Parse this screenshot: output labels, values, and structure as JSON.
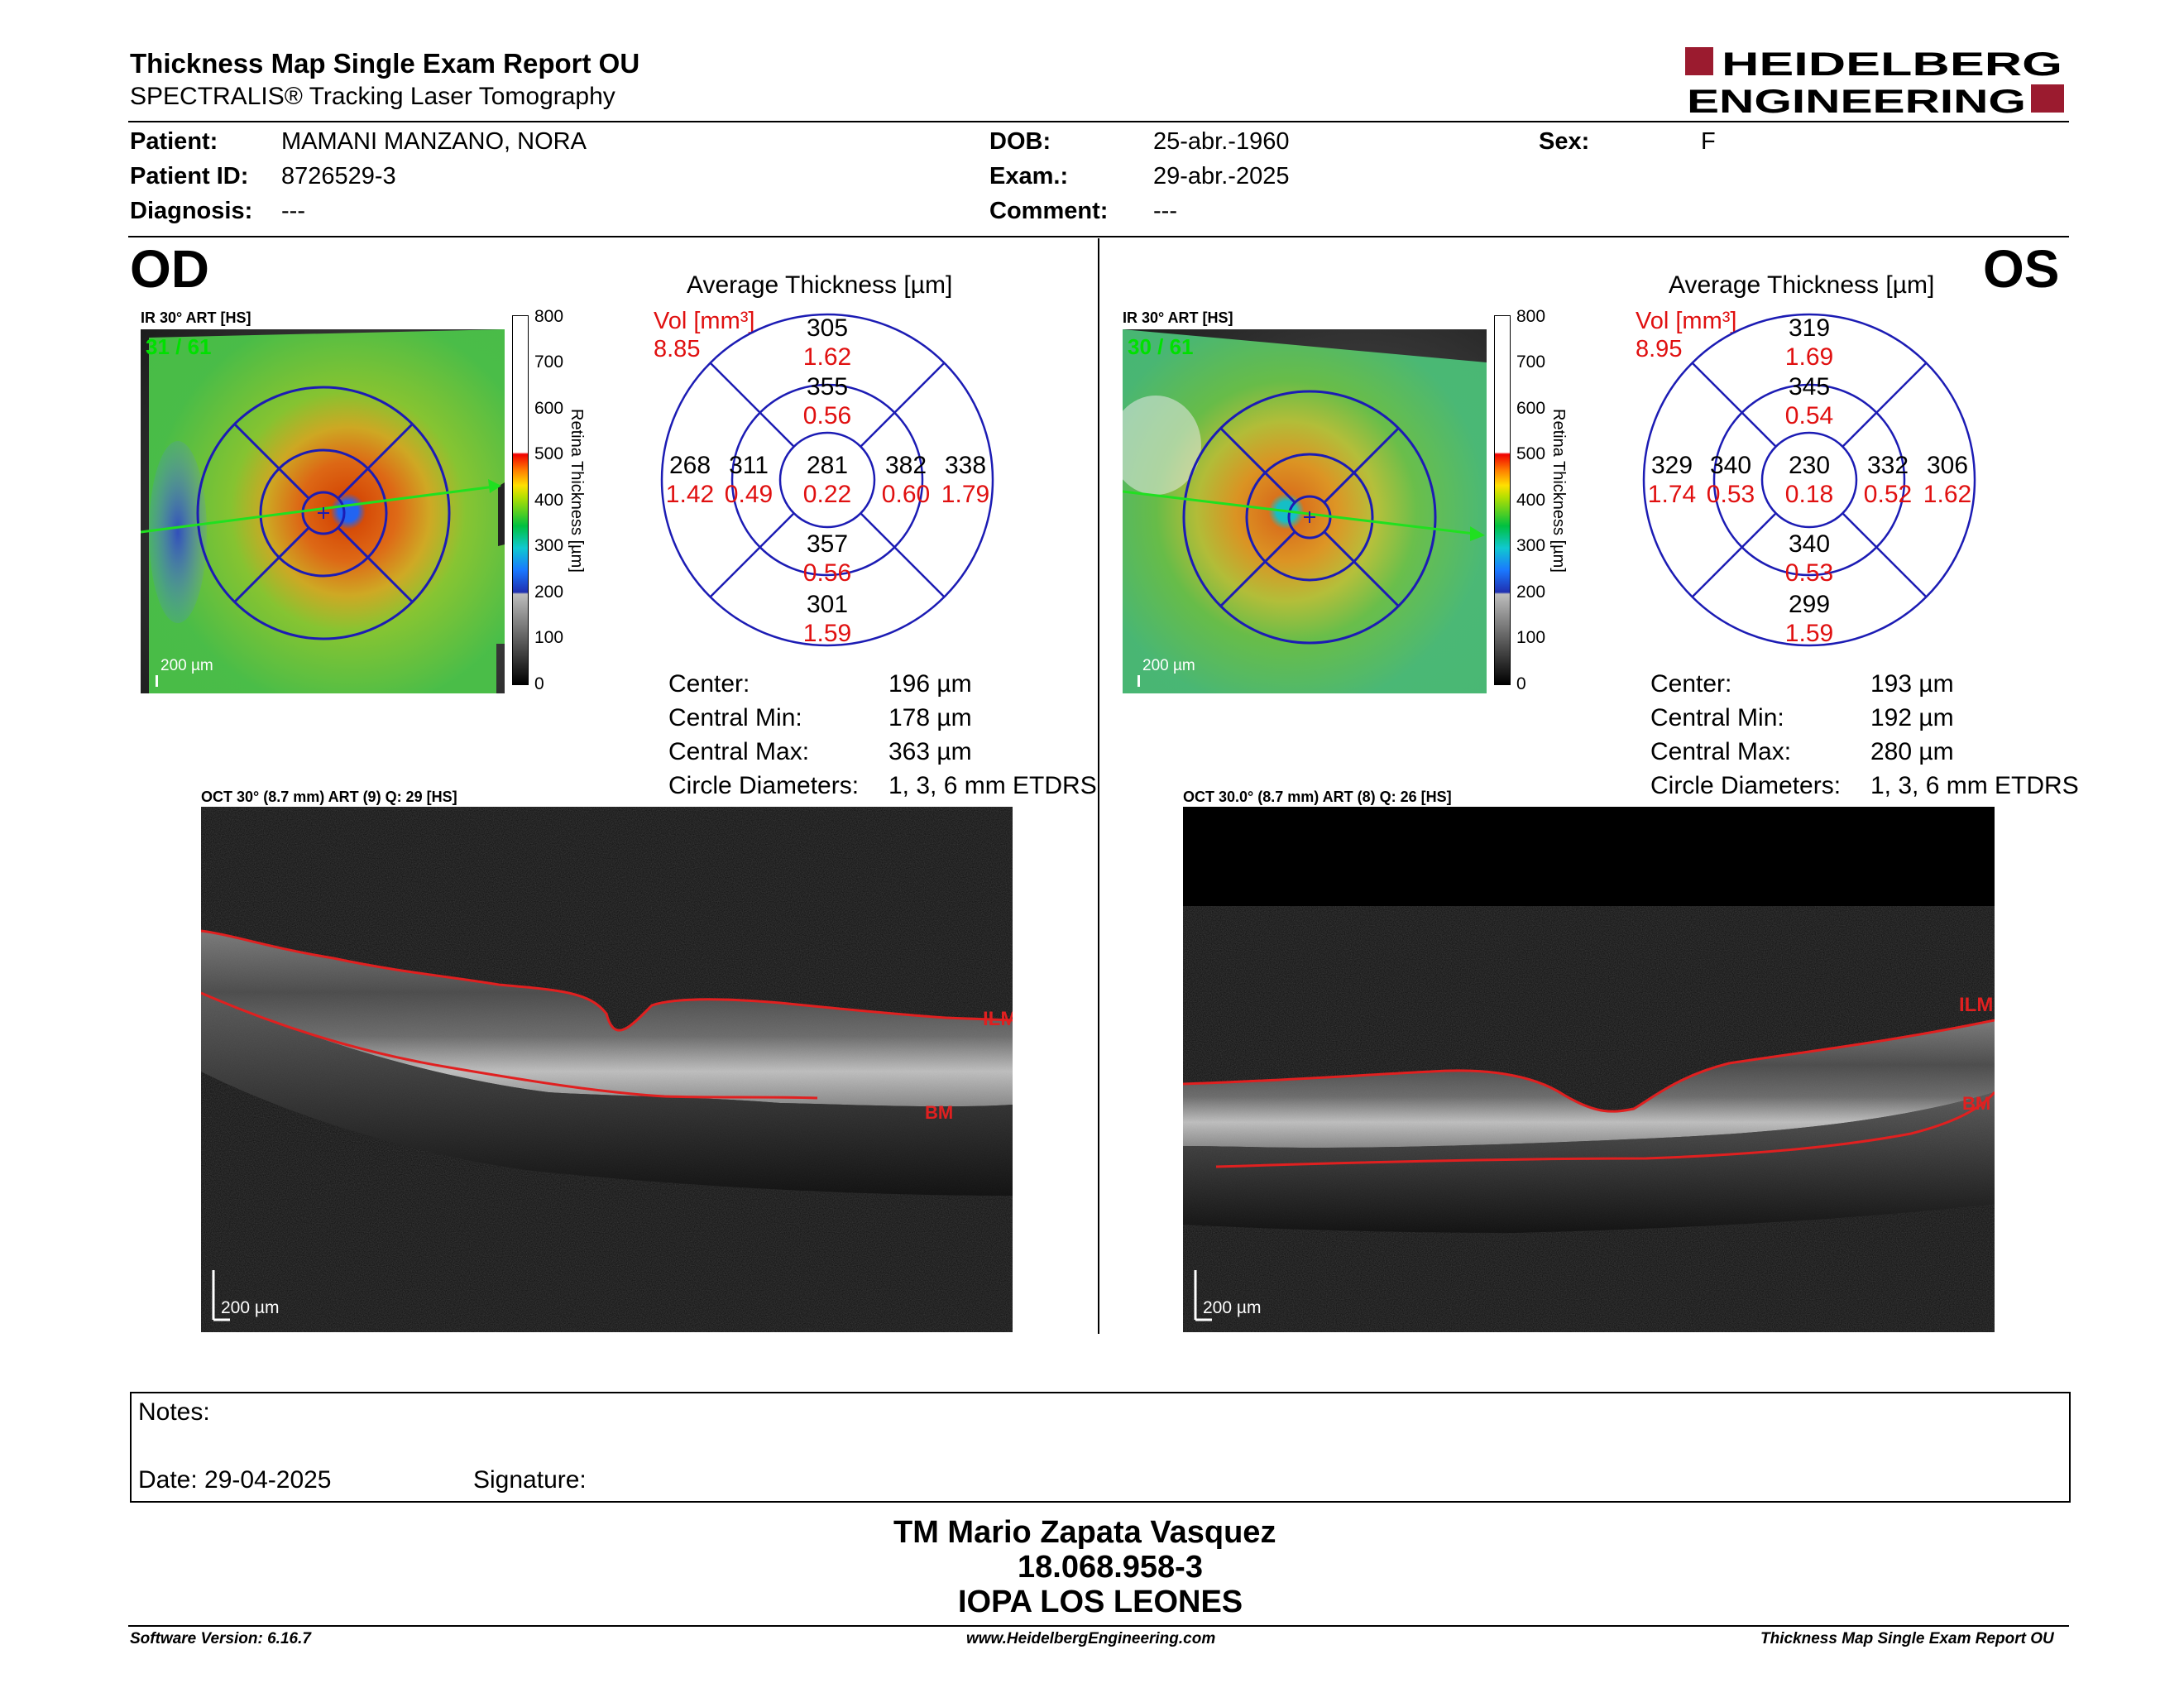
{
  "header": {
    "title": "Thickness Map Single Exam Report OU",
    "subtitle": "SPECTRALIS® Tracking Laser Tomography",
    "logo_line1": "HEIDELBERG",
    "logo_line2": "ENGINEERING"
  },
  "patient": {
    "patient_label": "Patient:",
    "patient_value": "MAMANI MANZANO, NORA",
    "patient_id_label": "Patient ID:",
    "patient_id_value": "8726529-3",
    "diagnosis_label": "Diagnosis:",
    "diagnosis_value": "---",
    "dob_label": "DOB:",
    "dob_value": "25-abr.-1960",
    "exam_label": "Exam.:",
    "exam_value": "29-abr.-2025",
    "comment_label": "Comment:",
    "comment_value": "---",
    "sex_label": "Sex:",
    "sex_value": "F"
  },
  "colorbar": {
    "ticks": [
      "800",
      "700",
      "600",
      "500",
      "400",
      "300",
      "200",
      "100",
      "0"
    ],
    "label": "Retina   Thickness [µm]"
  },
  "od": {
    "eye": "OD",
    "ir_title": "IR 30° ART [HS]",
    "frame": "31 / 61",
    "ir_scale": "200 µm",
    "avg_title": "Average Thickness [µm]",
    "vol_label": "Vol [mm³]",
    "vol_value": "8.85",
    "grid": {
      "center": {
        "t": "281",
        "v": "0.22"
      },
      "inner_sup": {
        "t": "355",
        "v": "0.56"
      },
      "inner_inf": {
        "t": "357",
        "v": "0.56"
      },
      "inner_left": {
        "t": "311",
        "v": "0.49"
      },
      "inner_right": {
        "t": "382",
        "v": "0.60"
      },
      "outer_sup": {
        "t": "305",
        "v": "1.62"
      },
      "outer_inf": {
        "t": "301",
        "v": "1.59"
      },
      "outer_left": {
        "t": "268",
        "v": "1.42"
      },
      "outer_right": {
        "t": "338",
        "v": "1.79"
      }
    },
    "stats": {
      "center_label": "Center:",
      "center_value": "196 µm",
      "min_label": "Central Min:",
      "min_value": "178 µm",
      "max_label": "Central Max:",
      "max_value": "363 µm",
      "diam_label": "Circle Diameters:",
      "diam_value": "1, 3, 6 mm ETDRS"
    },
    "oct_title": "OCT 30° (8.7 mm) ART (9) Q: 29 [HS]",
    "ilm": "ILM",
    "bm": "BM",
    "oct_scale": "200 µm"
  },
  "os": {
    "eye": "OS",
    "ir_title": "IR 30° ART [HS]",
    "frame": "30 / 61",
    "ir_scale": "200 µm",
    "avg_title": "Average Thickness [µm]",
    "vol_label": "Vol [mm³]",
    "vol_value": "8.95",
    "grid": {
      "center": {
        "t": "230",
        "v": "0.18"
      },
      "inner_sup": {
        "t": "345",
        "v": "0.54"
      },
      "inner_inf": {
        "t": "340",
        "v": "0.53"
      },
      "inner_left": {
        "t": "340",
        "v": "0.53"
      },
      "inner_right": {
        "t": "332",
        "v": "0.52"
      },
      "outer_sup": {
        "t": "319",
        "v": "1.69"
      },
      "outer_inf": {
        "t": "299",
        "v": "1.59"
      },
      "outer_left": {
        "t": "329",
        "v": "1.74"
      },
      "outer_right": {
        "t": "306",
        "v": "1.62"
      }
    },
    "stats": {
      "center_label": "Center:",
      "center_value": "193 µm",
      "min_label": "Central Min:",
      "min_value": "192 µm",
      "max_label": "Central Max:",
      "max_value": "280 µm",
      "diam_label": "Circle Diameters:",
      "diam_value": "1, 3, 6 mm ETDRS"
    },
    "oct_title": "OCT 30.0° (8.7 mm) ART (8) Q: 26 [HS]",
    "ilm": "ILM",
    "bm": "BM",
    "oct_scale": "200 µm"
  },
  "notes": {
    "notes_label": "Notes:",
    "date_label": "Date: 29-04-2025",
    "signature_label": "Signature:"
  },
  "signature_block": {
    "line1": "TM Mario Zapata Vasquez",
    "line2": "18.068.958-3",
    "line3": "IOPA LOS LEONES"
  },
  "footer": {
    "software": "Software Version: 6.16.7",
    "website": "www.HeidelbergEngineering.com",
    "report": "Thickness Map Single Exam Report OU"
  },
  "colors": {
    "grid_blue": "#1c1cb4",
    "volume_red": "#e01010",
    "logo_red": "#9b1b2f",
    "ilm_red": "#e02020",
    "scan_green": "#20e020"
  }
}
